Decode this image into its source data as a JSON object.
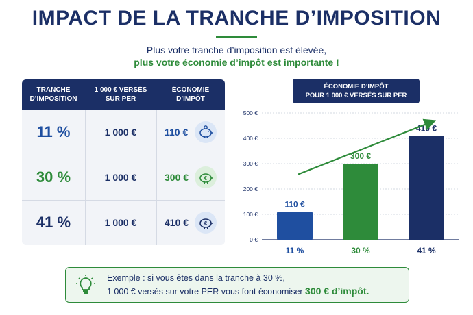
{
  "header": {
    "title": "IMPACT DE LA TRANCHE D’IMPOSITION",
    "subtitle_line1": "Plus votre tranche d’imposition est élevée,",
    "subtitle_line2": "plus votre économie d’impôt est importante !"
  },
  "table": {
    "headers": [
      {
        "line1": "TRANCHE",
        "line2": "D’IMPOSITION"
      },
      {
        "line1": "1 000 € VERSÉS",
        "line2": "SUR PER"
      },
      {
        "line1": "ÉCONOMIE",
        "line2": "D’IMPÔT"
      }
    ],
    "rows": [
      {
        "rate": "11 %",
        "amount": "1 000 €",
        "saving": "110 €",
        "color": "#1f4fa0",
        "icon": "piggy-bank-icon"
      },
      {
        "rate": "30 %",
        "amount": "1 000 €",
        "saving": "300 €",
        "color": "#2e8b3a",
        "icon": "piggy-bank-euro-icon"
      },
      {
        "rate": "41 %",
        "amount": "1 000 €",
        "saving": "410 €",
        "color": "#1b2f66",
        "icon": "piggy-bank-euro-icon"
      }
    ]
  },
  "chart_data": {
    "type": "bar",
    "title": "ÉCONOMIE D’IMPÔT POUR 1 000 € VERSÉS SUR PER",
    "title_line1": "ÉCONOMIE D’IMPÔT",
    "title_line2": "POUR 1 000 € VERSÉS SUR PER",
    "categories": [
      "11 %",
      "30 %",
      "41 %"
    ],
    "values": [
      110,
      300,
      410
    ],
    "value_labels": [
      "110 €",
      "300 €",
      "410 €"
    ],
    "colors": [
      "#1f4fa0",
      "#2e8b3a",
      "#1b2f66"
    ],
    "ylim": [
      0,
      500
    ],
    "yticks": [
      0,
      100,
      200,
      300,
      400,
      500
    ],
    "ytick_labels": [
      "0 €",
      "100 €",
      "200 €",
      "300 €",
      "400 €",
      "500 €"
    ],
    "grid": true,
    "trend_arrow": true
  },
  "callout": {
    "icon": "lightbulb-icon",
    "line1": "Exemple : si vous êtes dans la tranche à 30 %,",
    "line2": "1 000 € versés sur votre PER vous font économiser",
    "highlight": "300 € d’impôt."
  }
}
